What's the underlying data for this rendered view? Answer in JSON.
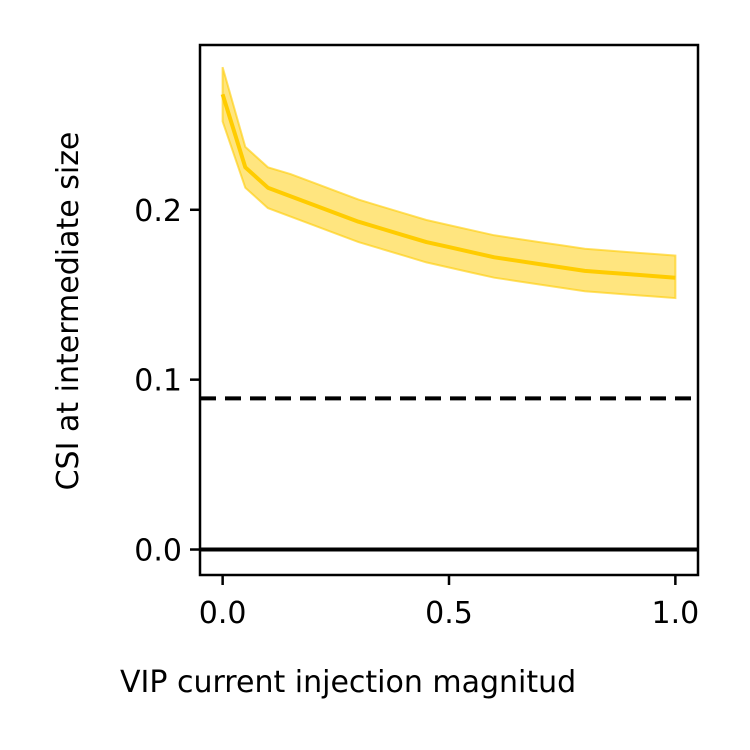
{
  "chart_data": {
    "type": "line",
    "xlabel": "VIP current injection magnitud",
    "ylabel": "CSI at intermediate size",
    "xlim": [
      -0.05,
      1.05
    ],
    "ylim": [
      -0.015,
      0.297
    ],
    "xticks": [
      0.0,
      0.5,
      1.0
    ],
    "xtick_labels": [
      "0.0",
      "0.5",
      "1.0"
    ],
    "yticks": [
      0.0,
      0.1,
      0.2
    ],
    "ytick_labels": [
      "0.0",
      "0.1",
      "0.2"
    ],
    "grid": false,
    "series": [
      {
        "color": "#FFCC00",
        "x": [
          0.0,
          0.05,
          0.1,
          0.15,
          0.2,
          0.25,
          0.3,
          0.35,
          0.4,
          0.45,
          0.5,
          0.55,
          0.6,
          0.65,
          0.7,
          0.75,
          0.8,
          0.85,
          0.9,
          0.95,
          1.0
        ],
        "y": [
          0.268,
          0.225,
          0.213,
          0.208,
          0.203,
          0.198,
          0.193,
          0.189,
          0.185,
          0.181,
          0.178,
          0.175,
          0.172,
          0.17,
          0.168,
          0.166,
          0.164,
          0.163,
          0.162,
          0.161,
          0.16
        ],
        "lower": [
          0.252,
          0.213,
          0.201,
          0.196,
          0.191,
          0.186,
          0.181,
          0.177,
          0.173,
          0.169,
          0.166,
          0.163,
          0.16,
          0.158,
          0.156,
          0.154,
          0.152,
          0.151,
          0.15,
          0.149,
          0.148
        ],
        "upper": [
          0.284,
          0.237,
          0.225,
          0.221,
          0.216,
          0.211,
          0.206,
          0.202,
          0.198,
          0.194,
          0.191,
          0.188,
          0.185,
          0.183,
          0.181,
          0.179,
          0.177,
          0.176,
          0.175,
          0.174,
          0.173
        ]
      }
    ],
    "reference_lines": [
      {
        "y": 0.089,
        "style": "dashed",
        "color": "#000000"
      },
      {
        "y": 0.0,
        "style": "solid",
        "color": "#000000"
      }
    ]
  }
}
